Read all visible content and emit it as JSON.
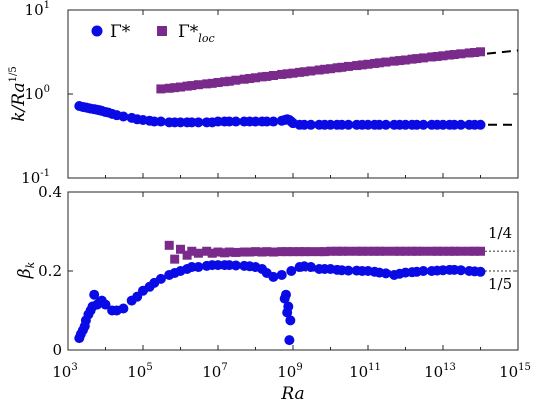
{
  "chart_data": [
    {
      "type": "scatter",
      "panel": "top",
      "xlabel": "Ra",
      "ylabel_main": "k/Ra",
      "ylabel_exp": "1/5",
      "xscale": "log",
      "yscale": "log",
      "xlim": [
        1000,
        1000000000000000.0
      ],
      "ylim": [
        0.1,
        10
      ],
      "xticks": [
        {
          "m": "10",
          "e": "3",
          "v": 1000.0
        },
        {
          "m": "10",
          "e": "5",
          "v": 100000.0
        },
        {
          "m": "10",
          "e": "7",
          "v": 10000000.0
        },
        {
          "m": "10",
          "e": "9",
          "v": 1000000000.0
        },
        {
          "m": "10",
          "e": "11",
          "v": 100000000000.0
        },
        {
          "m": "10",
          "e": "13",
          "v": 10000000000000.0
        },
        {
          "m": "10",
          "e": "15",
          "v": 1000000000000000.0
        }
      ],
      "yticks": [
        {
          "m": "10",
          "e": "-1",
          "v": 0.1
        },
        {
          "m": "10",
          "e": "0",
          "v": 1
        },
        {
          "m": "10",
          "e": "1",
          "v": 10
        }
      ],
      "legend": {
        "position": "top-left"
      },
      "series": [
        {
          "name": "Γ*",
          "marker": "circle",
          "color": "#0a0ae6",
          "x": [
            2000,
            2500,
            3000,
            3500,
            4000,
            5000,
            6000,
            7000,
            8000,
            10000,
            12000,
            15000,
            20000,
            30000,
            50000,
            70000,
            100000,
            150000,
            200000,
            300000,
            500000,
            700000,
            1000000,
            1500000,
            2000000,
            3000000,
            5000000,
            7000000,
            10000000,
            15000000,
            20000000,
            30000000,
            50000000,
            70000000,
            100000000,
            150000000,
            200000000,
            300000000,
            500000000,
            600000000,
            700000000,
            800000000,
            900000000,
            1000000000,
            1500000000,
            2000000000,
            3000000000,
            5000000000,
            7000000000,
            10000000000,
            15000000000,
            20000000000,
            30000000000,
            50000000000,
            70000000000,
            100000000000,
            150000000000,
            200000000000,
            300000000000,
            500000000000,
            700000000000,
            1000000000000,
            1500000000000,
            2000000000000,
            3000000000000,
            5000000000000,
            7000000000000,
            10000000000000,
            15000000000000,
            20000000000000,
            30000000000000,
            50000000000000,
            70000000000000,
            100000000000000
          ],
          "y": [
            0.72,
            0.7,
            0.69,
            0.68,
            0.67,
            0.66,
            0.65,
            0.64,
            0.63,
            0.61,
            0.6,
            0.58,
            0.56,
            0.54,
            0.52,
            0.5,
            0.49,
            0.48,
            0.47,
            0.47,
            0.46,
            0.46,
            0.46,
            0.46,
            0.46,
            0.46,
            0.46,
            0.46,
            0.47,
            0.47,
            0.47,
            0.47,
            0.47,
            0.47,
            0.47,
            0.47,
            0.47,
            0.47,
            0.48,
            0.49,
            0.5,
            0.49,
            0.47,
            0.45,
            0.43,
            0.43,
            0.43,
            0.43,
            0.43,
            0.43,
            0.43,
            0.43,
            0.43,
            0.43,
            0.43,
            0.43,
            0.43,
            0.43,
            0.43,
            0.43,
            0.43,
            0.43,
            0.43,
            0.43,
            0.43,
            0.43,
            0.43,
            0.43,
            0.43,
            0.43,
            0.43,
            0.43,
            0.43,
            0.43
          ]
        },
        {
          "name": "Γ*",
          "name_sub": "loc",
          "marker": "square",
          "color": "#7a2a8a",
          "x": [
            300000,
            500000,
            700000,
            1000000,
            1500000,
            2000000,
            3000000,
            5000000,
            7000000,
            10000000,
            15000000,
            20000000,
            30000000,
            50000000,
            70000000,
            100000000,
            150000000,
            200000000,
            300000000,
            500000000,
            700000000,
            1000000000,
            1500000000,
            2000000000,
            3000000000,
            5000000000,
            7000000000,
            10000000000,
            15000000000,
            20000000000,
            30000000000,
            50000000000,
            70000000000,
            100000000000,
            150000000000,
            200000000000,
            300000000000,
            500000000000,
            700000000000,
            1000000000000,
            1500000000000,
            2000000000000,
            3000000000000,
            5000000000000,
            7000000000000,
            10000000000000,
            15000000000000,
            20000000000000,
            30000000000000,
            50000000000000,
            70000000000000,
            100000000000000
          ],
          "y": [
            1.15,
            1.17,
            1.19,
            1.21,
            1.24,
            1.26,
            1.29,
            1.32,
            1.34,
            1.37,
            1.4,
            1.42,
            1.46,
            1.5,
            1.53,
            1.56,
            1.6,
            1.62,
            1.66,
            1.71,
            1.74,
            1.77,
            1.81,
            1.84,
            1.88,
            1.93,
            1.97,
            2.0,
            2.05,
            2.08,
            2.13,
            2.18,
            2.22,
            2.26,
            2.31,
            2.35,
            2.4,
            2.46,
            2.5,
            2.54,
            2.6,
            2.64,
            2.69,
            2.76,
            2.8,
            2.85,
            2.91,
            2.95,
            3.01,
            3.08,
            3.12,
            3.18
          ]
        }
      ],
      "fit_lines": [
        {
          "x": [
            1000000000.0,
            1000000000000000.0
          ],
          "y": [
            1.75,
            3.3
          ],
          "style": "dashed"
        },
        {
          "x": [
            1000000000.0,
            1000000000000000.0
          ],
          "y": [
            0.43,
            0.43
          ],
          "style": "dashed"
        }
      ]
    },
    {
      "type": "scatter",
      "panel": "bottom",
      "xlabel": "Ra",
      "ylabel_main": "β",
      "ylabel_sub": "k",
      "xscale": "log",
      "yscale": "linear",
      "xlim": [
        1000,
        1000000000000000.0
      ],
      "ylim": [
        0,
        0.4
      ],
      "xticks": [
        {
          "m": "10",
          "e": "3",
          "v": 1000.0
        },
        {
          "m": "10",
          "e": "5",
          "v": 100000.0
        },
        {
          "m": "10",
          "e": "7",
          "v": 10000000.0
        },
        {
          "m": "10",
          "e": "9",
          "v": 1000000000.0
        },
        {
          "m": "10",
          "e": "11",
          "v": 100000000000.0
        },
        {
          "m": "10",
          "e": "13",
          "v": 10000000000000.0
        },
        {
          "m": "10",
          "e": "15",
          "v": 1000000000000000.0
        }
      ],
      "yticks": [
        {
          "label": "0",
          "v": 0
        },
        {
          "label": "0.2",
          "v": 0.2
        },
        {
          "label": "0.4",
          "v": 0.4
        }
      ],
      "series": [
        {
          "name": "Γ*",
          "marker": "circle",
          "color": "#0a0ae6",
          "x": [
            2000,
            2200,
            2500,
            2800,
            3000,
            3500,
            4000,
            4500,
            5000,
            6000,
            7000,
            8000,
            10000,
            15000,
            20000,
            30000,
            50000,
            70000,
            100000,
            150000,
            200000,
            300000,
            500000,
            700000,
            1000000,
            1500000,
            2000000,
            3000000,
            5000000,
            7000000,
            10000000,
            15000000,
            20000000,
            30000000,
            50000000,
            70000000,
            100000000,
            150000000,
            200000000,
            300000000,
            500000000,
            600000000,
            650000000,
            700000000,
            750000000,
            800000000,
            850000000,
            900000000,
            1500000000,
            2000000000,
            3000000000,
            5000000000,
            7000000000,
            10000000000,
            15000000000,
            20000000000,
            30000000000,
            50000000000,
            70000000000,
            100000000000,
            150000000000,
            200000000000,
            300000000000,
            500000000000,
            700000000000,
            1000000000000,
            1500000000000,
            2000000000000,
            3000000000000,
            5000000000000,
            7000000000000,
            10000000000000,
            15000000000000,
            20000000000000,
            30000000000000,
            50000000000000,
            70000000000000,
            100000000000000
          ],
          "y": [
            0.03,
            0.04,
            0.05,
            0.06,
            0.075,
            0.09,
            0.1,
            0.11,
            0.14,
            0.115,
            0.12,
            0.125,
            0.115,
            0.1,
            0.1,
            0.105,
            0.125,
            0.135,
            0.15,
            0.16,
            0.17,
            0.18,
            0.19,
            0.195,
            0.2,
            0.205,
            0.21,
            0.21,
            0.213,
            0.215,
            0.215,
            0.215,
            0.215,
            0.214,
            0.213,
            0.212,
            0.21,
            0.205,
            0.195,
            0.185,
            0.19,
            0.13,
            0.14,
            0.095,
            0.11,
            0.025,
            0.075,
            0.2,
            0.21,
            0.212,
            0.21,
            0.205,
            0.205,
            0.205,
            0.203,
            0.202,
            0.201,
            0.201,
            0.2,
            0.2,
            0.198,
            0.196,
            0.194,
            0.19,
            0.193,
            0.196,
            0.197,
            0.198,
            0.2,
            0.2,
            0.201,
            0.202,
            0.203,
            0.203,
            0.202,
            0.2,
            0.199,
            0.198
          ]
        },
        {
          "name": "Γ*",
          "name_sub": "loc",
          "marker": "square",
          "color": "#7a2a8a",
          "x": [
            500000,
            700000,
            1000000,
            1500000,
            2000000,
            3000000,
            5000000,
            7000000,
            10000000,
            15000000,
            20000000,
            30000000,
            50000000,
            70000000,
            100000000,
            150000000,
            200000000,
            300000000,
            500000000,
            700000000,
            1000000000,
            1500000000,
            2000000000,
            3000000000,
            5000000000,
            7000000000,
            10000000000,
            15000000000,
            20000000000,
            30000000000,
            50000000000,
            70000000000,
            100000000000,
            150000000000,
            200000000000,
            300000000000,
            500000000000,
            700000000000,
            1000000000000,
            1500000000000,
            2000000000000,
            3000000000000,
            5000000000000,
            7000000000000,
            10000000000000,
            15000000000000,
            20000000000000,
            30000000000000,
            50000000000000,
            70000000000000,
            100000000000000
          ],
          "y": [
            0.265,
            0.23,
            0.255,
            0.24,
            0.25,
            0.245,
            0.25,
            0.245,
            0.248,
            0.246,
            0.248,
            0.247,
            0.248,
            0.248,
            0.249,
            0.248,
            0.249,
            0.248,
            0.249,
            0.249,
            0.249,
            0.249,
            0.249,
            0.249,
            0.249,
            0.249,
            0.25,
            0.25,
            0.25,
            0.25,
            0.25,
            0.25,
            0.25,
            0.25,
            0.25,
            0.25,
            0.25,
            0.25,
            0.25,
            0.25,
            0.25,
            0.25,
            0.25,
            0.25,
            0.25,
            0.25,
            0.25,
            0.25,
            0.25,
            0.25,
            0.25
          ]
        }
      ],
      "ref_lines": [
        {
          "y": 0.25,
          "x": [
            1000000000.0,
            1000000000000000.0
          ],
          "label": "1/4",
          "style": "dotted"
        },
        {
          "y": 0.2,
          "x": [
            1000000000.0,
            1000000000000000.0
          ],
          "label": "1/5",
          "style": "dotted"
        }
      ]
    }
  ]
}
